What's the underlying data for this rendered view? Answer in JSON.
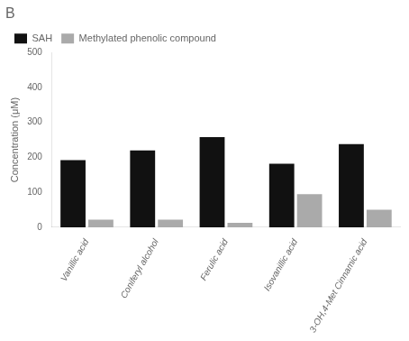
{
  "chart_data": {
    "type": "bar",
    "title": "B",
    "categories": [
      "Vanillic acid",
      "Coniferyl alcohol",
      "Ferulic acid",
      "Isovanillic acid",
      "3-OH,4-Met Cinnamic acid"
    ],
    "series": [
      {
        "name": "SAH",
        "color": "#111111",
        "values": [
          192,
          220,
          258,
          182,
          238
        ]
      },
      {
        "name": "Methylated phenolic compound",
        "color": "#aaaaaa",
        "values": [
          22,
          22,
          13,
          95,
          50
        ]
      }
    ],
    "ylabel": "Concentration (μM)",
    "ylim": [
      0,
      500
    ],
    "yticks": [
      0,
      100,
      200,
      300,
      400,
      500
    ],
    "grid": false,
    "legend": "upper left"
  }
}
